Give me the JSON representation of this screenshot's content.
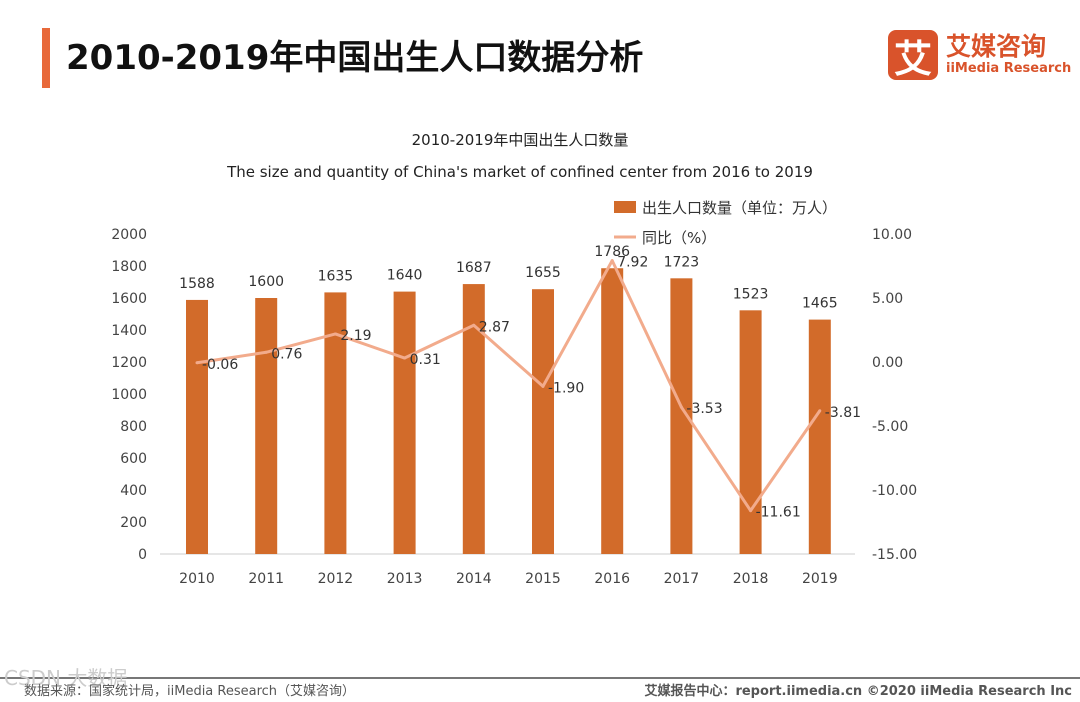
{
  "header": {
    "title": "2010-2019年中国出生人口数据分析"
  },
  "logo": {
    "mark": "艾",
    "cn": "艾媒咨询",
    "en": "iiMedia Research"
  },
  "footer": {
    "source": "数据来源：国家统计局，iiMedia Research（艾媒咨询）",
    "right": "艾媒报告中心：report.iimedia.cn  ©2020  iiMedia Research Inc",
    "watermark": "CSDN 大数据"
  },
  "colors": {
    "bar": "#d26b2a",
    "line": "#f2ab8c",
    "accent": "#e8693a"
  },
  "chart_data": {
    "type": "bar+line",
    "title": "2010-2019年中国出生人口数量",
    "subtitle": "The size and quantity of China's market of confined center from 2016 to 2019",
    "categories": [
      "2010",
      "2011",
      "2012",
      "2013",
      "2014",
      "2015",
      "2016",
      "2017",
      "2018",
      "2019"
    ],
    "series": [
      {
        "name": "出生人口数量（单位：万人）",
        "type": "bar",
        "axis": "left",
        "values": [
          1588,
          1600,
          1635,
          1640,
          1687,
          1655,
          1786,
          1723,
          1523,
          1465
        ]
      },
      {
        "name": "同比（%）",
        "type": "line",
        "axis": "right",
        "values": [
          -0.06,
          0.76,
          2.19,
          0.31,
          2.87,
          -1.9,
          7.92,
          -3.53,
          -11.61,
          -3.81
        ]
      }
    ],
    "left_axis": {
      "ylim": [
        0,
        2000
      ],
      "ticks": [
        "0",
        "200",
        "400",
        "600",
        "800",
        "1000",
        "1200",
        "1400",
        "1600",
        "1800",
        "2000"
      ]
    },
    "right_axis": {
      "ylim": [
        -15,
        10
      ],
      "ticks": [
        "-15.00",
        "-10.00",
        "-5.00",
        "0.00",
        "5.00",
        "10.00"
      ]
    },
    "legend": "top-right",
    "grid": false
  }
}
